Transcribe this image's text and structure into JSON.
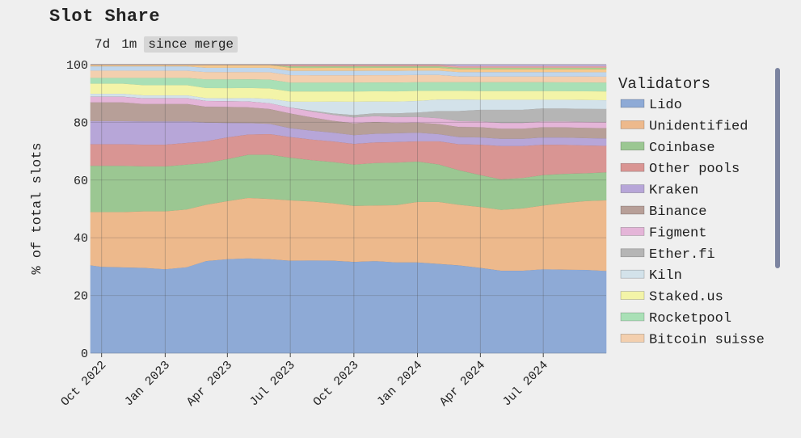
{
  "header": {
    "title": "Slot Share",
    "ranges": [
      {
        "label": "7d",
        "active": false
      },
      {
        "label": "1m",
        "active": false
      },
      {
        "label": "since merge",
        "active": true
      }
    ]
  },
  "chart_data": {
    "type": "area",
    "stacked": true,
    "title": "",
    "xlabel": "",
    "ylabel": "% of total slots",
    "ylim": [
      0,
      100
    ],
    "yticks": [
      0,
      20,
      40,
      60,
      80,
      100
    ],
    "xticks": [
      "Oct 2022",
      "Jan 2023",
      "Apr 2023",
      "Jul 2023",
      "Oct 2023",
      "Jan 2024",
      "Apr 2024",
      "Jul 2024"
    ],
    "x": [
      "2022-09-15",
      "2022-10-01",
      "2022-11-01",
      "2022-12-01",
      "2023-01-01",
      "2023-02-01",
      "2023-03-01",
      "2023-04-01",
      "2023-05-01",
      "2023-06-01",
      "2023-07-01",
      "2023-08-01",
      "2023-09-01",
      "2023-10-01",
      "2023-11-01",
      "2023-12-01",
      "2024-01-01",
      "2024-02-01",
      "2024-03-01",
      "2024-04-01",
      "2024-05-01",
      "2024-06-01",
      "2024-07-01",
      "2024-08-01",
      "2024-09-01",
      "2024-09-30"
    ],
    "grid": true,
    "legend_title": "Validators",
    "legend_position": "right",
    "series": [
      {
        "name": "Lido",
        "color": "#8eaad6",
        "values": [
          30.5,
          30.0,
          29.8,
          29.5,
          29.0,
          29.8,
          32.0,
          32.5,
          33.0,
          32.0,
          31.5,
          31.5,
          31.5,
          31.0,
          31.5,
          31.0,
          31.5,
          31.0,
          30.5,
          29.5,
          28.5,
          28.5,
          29.0,
          28.8,
          28.5,
          28.0
        ]
      },
      {
        "name": "Unidentified",
        "color": "#edb98c",
        "values": [
          18.5,
          19.0,
          19.2,
          19.5,
          20.0,
          20.0,
          19.5,
          20.0,
          21.0,
          20.5,
          20.5,
          20.0,
          19.5,
          19.0,
          19.0,
          19.5,
          21.0,
          21.5,
          21.0,
          21.0,
          21.0,
          21.5,
          22.0,
          23.0,
          23.5,
          24.0
        ]
      },
      {
        "name": "Coinbase",
        "color": "#9bc792",
        "values": [
          16.0,
          16.0,
          16.0,
          15.5,
          15.5,
          15.5,
          14.5,
          14.5,
          15.0,
          15.0,
          14.5,
          14.0,
          14.0,
          14.0,
          14.5,
          14.5,
          14.0,
          13.0,
          12.0,
          11.0,
          10.5,
          10.5,
          10.5,
          10.0,
          9.5,
          9.5
        ]
      },
      {
        "name": "Other pools",
        "color": "#d99593",
        "values": [
          7.5,
          7.5,
          7.5,
          7.5,
          7.5,
          7.5,
          7.5,
          7.5,
          7.0,
          7.0,
          7.0,
          7.0,
          7.0,
          7.0,
          7.0,
          7.0,
          7.0,
          8.0,
          9.0,
          10.5,
          11.5,
          11.0,
          10.5,
          10.0,
          9.5,
          9.0
        ]
      },
      {
        "name": "Kraken",
        "color": "#b7a6d8",
        "values": [
          8.0,
          8.0,
          8.0,
          8.0,
          8.0,
          7.5,
          6.5,
          5.0,
          4.0,
          3.5,
          3.0,
          3.0,
          3.0,
          3.0,
          3.0,
          3.0,
          3.0,
          2.5,
          2.5,
          2.5,
          2.5,
          2.5,
          2.5,
          2.5,
          2.5,
          2.5
        ]
      },
      {
        "name": "Binance",
        "color": "#b79f98",
        "values": [
          6.5,
          6.5,
          6.5,
          6.0,
          6.0,
          6.0,
          5.5,
          5.5,
          5.5,
          5.0,
          5.0,
          4.5,
          4.0,
          4.0,
          4.0,
          3.5,
          3.5,
          3.5,
          3.5,
          3.5,
          3.5,
          3.5,
          3.5,
          3.5,
          3.5,
          3.5
        ]
      },
      {
        "name": "Figment",
        "color": "#e4b5d8",
        "values": [
          2.0,
          2.0,
          2.0,
          2.0,
          2.0,
          2.0,
          2.0,
          2.0,
          2.0,
          2.0,
          2.0,
          2.0,
          2.0,
          2.0,
          2.0,
          2.0,
          2.0,
          2.0,
          2.0,
          2.0,
          2.0,
          2.0,
          2.0,
          2.0,
          2.0,
          2.0
        ]
      },
      {
        "name": "Ether.fi",
        "color": "#b5b5b5",
        "values": [
          0.0,
          0.0,
          0.0,
          0.0,
          0.0,
          0.0,
          0.0,
          0.0,
          0.0,
          0.0,
          0.0,
          0.3,
          0.5,
          0.8,
          1.0,
          1.3,
          1.5,
          2.5,
          3.5,
          4.0,
          4.5,
          4.5,
          4.5,
          4.5,
          4.5,
          4.5
        ]
      },
      {
        "name": "Kiln",
        "color": "#d3e2ea",
        "values": [
          1.0,
          1.0,
          1.0,
          1.0,
          1.0,
          1.0,
          1.0,
          1.0,
          1.2,
          1.5,
          2.0,
          3.0,
          4.0,
          4.5,
          4.0,
          4.0,
          4.0,
          4.0,
          4.0,
          3.5,
          3.5,
          3.5,
          3.0,
          3.0,
          3.0,
          3.0
        ]
      },
      {
        "name": "Staked.us",
        "color": "#f3f4a8",
        "values": [
          3.5,
          3.5,
          3.5,
          3.5,
          3.5,
          3.5,
          3.5,
          3.5,
          3.5,
          3.5,
          3.5,
          3.5,
          3.5,
          3.5,
          3.5,
          3.5,
          3.5,
          3.0,
          3.0,
          3.0,
          3.0,
          3.0,
          3.0,
          3.0,
          3.0,
          3.0
        ]
      },
      {
        "name": "Rocketpool",
        "color": "#a9e0b6",
        "values": [
          2.0,
          2.0,
          2.0,
          2.5,
          2.5,
          2.5,
          3.0,
          3.0,
          3.0,
          3.0,
          3.0,
          3.0,
          3.0,
          3.0,
          3.0,
          3.0,
          3.0,
          3.0,
          3.0,
          3.0,
          3.0,
          3.0,
          3.0,
          3.0,
          3.0,
          3.0
        ]
      },
      {
        "name": "Bitcoin suisse",
        "color": "#f3cfae",
        "values": [
          2.5,
          2.5,
          2.5,
          2.5,
          2.5,
          2.5,
          2.5,
          2.5,
          2.5,
          2.5,
          2.5,
          2.5,
          2.5,
          2.5,
          2.5,
          2.5,
          2.5,
          2.5,
          2.0,
          2.0,
          2.0,
          2.0,
          2.0,
          2.0,
          2.0,
          2.0
        ]
      },
      {
        "name": "",
        "color": "#c0d6ec",
        "values": [
          1.5,
          1.5,
          1.5,
          1.5,
          1.5,
          1.5,
          1.5,
          1.5,
          1.5,
          1.5,
          1.5,
          1.5,
          1.5,
          1.5,
          1.5,
          1.5,
          1.5,
          1.5,
          1.5,
          1.5,
          1.5,
          1.5,
          1.5,
          1.5,
          1.5,
          1.5
        ]
      },
      {
        "name": "",
        "color": "#f6c98e",
        "values": [
          0.5,
          0.5,
          0.5,
          0.5,
          0.5,
          0.5,
          1.0,
          1.0,
          1.0,
          1.0,
          1.0,
          1.0,
          1.0,
          1.0,
          1.0,
          1.0,
          1.0,
          1.0,
          1.0,
          1.0,
          1.0,
          1.0,
          1.0,
          1.0,
          1.0,
          1.0
        ]
      },
      {
        "name": "",
        "color": "#a9d08e",
        "values": [
          0.0,
          0.0,
          0.0,
          0.0,
          0.0,
          0.0,
          0.0,
          0.0,
          0.0,
          0.0,
          0.5,
          0.5,
          0.5,
          0.5,
          0.5,
          0.5,
          0.5,
          0.5,
          0.5,
          0.5,
          0.5,
          0.5,
          0.5,
          0.5,
          0.5,
          0.5
        ]
      },
      {
        "name": "",
        "color": "#e8a4a2",
        "values": [
          0.0,
          0.0,
          0.0,
          0.0,
          0.0,
          0.0,
          0.0,
          0.0,
          0.0,
          0.0,
          0.5,
          0.5,
          0.5,
          0.5,
          0.5,
          0.5,
          0.5,
          0.5,
          0.5,
          0.5,
          0.5,
          0.5,
          0.5,
          0.5,
          0.5,
          0.5
        ]
      },
      {
        "name": "",
        "color": "#c7b5e2",
        "values": [
          0.0,
          0.0,
          0.0,
          0.0,
          0.0,
          0.0,
          0.0,
          0.0,
          0.0,
          0.0,
          0.0,
          0.0,
          0.0,
          0.0,
          0.0,
          0.0,
          0.0,
          0.0,
          0.5,
          0.5,
          0.5,
          0.5,
          0.5,
          0.5,
          0.5,
          0.5
        ]
      }
    ]
  }
}
